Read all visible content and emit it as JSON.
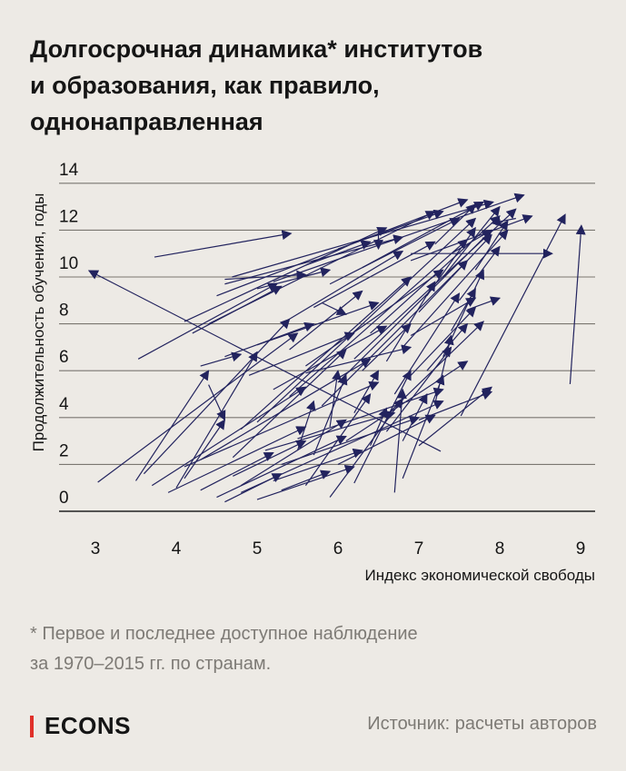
{
  "title_lines": [
    "Долгосрочная динамика* институтов",
    "и образования, как правило,",
    "однонаправленная"
  ],
  "footnote_lines": [
    "* Первое и последнее доступное наблюдение",
    "за 1970–2015 гг. по странам."
  ],
  "brand": "ECONS",
  "source": "Источник: расчеты авторов",
  "colors": {
    "arrow": "#22235e",
    "grid": "#7a7670",
    "background": "#edeae5",
    "brand_bar": "#e0312a"
  },
  "chart_data": {
    "type": "scatter",
    "subtype": "arrows (first to last observation)",
    "xlabel": "Индекс экономической свободы",
    "ylabel": "Продолжительность обучения, годы",
    "xlim": [
      2.6,
      9.2
    ],
    "ylim": [
      0,
      14
    ],
    "xticks": [
      "3",
      "4",
      "5",
      "6",
      "7",
      "8",
      "9"
    ],
    "yticks": [
      "0",
      "2",
      "4",
      "6",
      "8",
      "10",
      "12",
      "14"
    ],
    "grid": "horizontal",
    "arrows": [
      [
        3.73,
        10.85,
        5.42,
        11.86
      ],
      [
        7.27,
        2.56,
        2.92,
        10.27
      ],
      [
        8.87,
        5.43,
        9.01,
        12.2
      ],
      [
        3.03,
        1.24,
        5.5,
        7.6
      ],
      [
        3.53,
        6.5,
        5.25,
        9.73
      ],
      [
        4.69,
        10.0,
        7.92,
        13.2
      ],
      [
        7.52,
        4.07,
        8.81,
        12.67
      ],
      [
        6.9,
        11.0,
        8.65,
        11.0
      ],
      [
        6.9,
        7.5,
        7.7,
        9.1
      ],
      [
        3.5,
        1.3,
        4.4,
        6.0
      ],
      [
        4.3,
        6.2,
        4.8,
        6.7
      ],
      [
        4.0,
        1.0,
        5.0,
        6.8
      ],
      [
        4.2,
        7.6,
        5.3,
        9.6
      ],
      [
        4.5,
        9.2,
        7.6,
        13.3
      ],
      [
        4.4,
        8.0,
        7.2,
        12.8
      ],
      [
        4.1,
        8.1,
        6.6,
        12.1
      ],
      [
        5.2,
        9.8,
        8.3,
        13.5
      ],
      [
        4.6,
        9.7,
        6.8,
        11.7
      ],
      [
        3.9,
        0.8,
        5.6,
        3.6
      ],
      [
        4.3,
        0.9,
        5.2,
        2.5
      ],
      [
        4.5,
        0.6,
        6.1,
        3.2
      ],
      [
        5.0,
        0.5,
        6.2,
        1.9
      ],
      [
        4.8,
        0.8,
        7.3,
        4.7
      ],
      [
        4.1,
        1.9,
        6.5,
        5.5
      ],
      [
        5.3,
        0.9,
        5.9,
        1.7
      ],
      [
        4.6,
        0.4,
        5.3,
        1.6
      ],
      [
        4.1,
        1.4,
        4.6,
        3.9
      ],
      [
        4.7,
        1.5,
        5.6,
        3.0
      ],
      [
        3.6,
        1.6,
        5.4,
        8.2
      ],
      [
        4.7,
        2.3,
        6.1,
        6.9
      ],
      [
        5.6,
        1.1,
        6.4,
        5.0
      ],
      [
        5.9,
        0.6,
        6.8,
        4.8
      ],
      [
        6.2,
        1.2,
        6.9,
        6.0
      ],
      [
        5.1,
        2.6,
        6.7,
        4.2
      ],
      [
        5.5,
        3.1,
        7.3,
        5.2
      ],
      [
        5.3,
        2.0,
        7.0,
        4.0
      ],
      [
        6.0,
        2.0,
        7.2,
        4.1
      ],
      [
        6.8,
        1.4,
        7.3,
        5.8
      ],
      [
        6.1,
        3.0,
        7.6,
        6.4
      ],
      [
        7.0,
        3.9,
        7.9,
        5.1
      ],
      [
        6.6,
        4.1,
        7.8,
        8.1
      ],
      [
        7.2,
        4.6,
        7.4,
        7.5
      ],
      [
        6.7,
        5.0,
        7.5,
        9.3
      ],
      [
        7.4,
        7.7,
        7.7,
        9.5
      ],
      [
        5.8,
        4.5,
        7.6,
        10.7
      ],
      [
        6.0,
        5.5,
        7.9,
        12.0
      ],
      [
        5.4,
        4.9,
        7.6,
        11.6
      ],
      [
        5.0,
        3.8,
        7.7,
        12.5
      ],
      [
        4.8,
        3.5,
        6.9,
        10.0
      ],
      [
        5.6,
        6.2,
        7.3,
        10.3
      ],
      [
        6.2,
        6.5,
        8.2,
        12.9
      ],
      [
        6.4,
        7.6,
        8.0,
        12.6
      ],
      [
        6.8,
        7.0,
        8.1,
        12.0
      ],
      [
        7.0,
        8.5,
        7.9,
        11.8
      ],
      [
        7.1,
        9.2,
        7.7,
        12.1
      ],
      [
        7.3,
        10.0,
        8.0,
        13.0
      ],
      [
        6.9,
        10.7,
        8.4,
        12.6
      ],
      [
        6.3,
        10.4,
        7.8,
        13.2
      ],
      [
        5.9,
        9.7,
        7.5,
        12.5
      ],
      [
        5.7,
        8.7,
        7.2,
        11.5
      ],
      [
        5.3,
        8.0,
        6.8,
        11.1
      ],
      [
        5.0,
        7.1,
        6.5,
        8.9
      ],
      [
        4.6,
        6.6,
        5.7,
        8.0
      ],
      [
        4.9,
        5.8,
        6.2,
        7.6
      ],
      [
        5.2,
        5.2,
        6.6,
        7.9
      ],
      [
        5.6,
        5.9,
        6.9,
        7.0
      ],
      [
        6.3,
        6.0,
        6.9,
        8.0
      ],
      [
        6.2,
        4.2,
        6.5,
        6.0
      ],
      [
        5.9,
        3.6,
        6.0,
        6.0
      ],
      [
        5.5,
        2.6,
        5.7,
        4.7
      ],
      [
        5.7,
        2.4,
        6.1,
        5.8
      ],
      [
        6.4,
        2.8,
        6.6,
        4.4
      ],
      [
        6.8,
        3.0,
        7.1,
        5.0
      ],
      [
        7.0,
        2.8,
        7.9,
        5.3
      ],
      [
        6.6,
        3.4,
        7.4,
        7.0
      ],
      [
        6.9,
        5.8,
        7.7,
        8.7
      ],
      [
        7.3,
        6.6,
        7.8,
        10.3
      ],
      [
        7.5,
        9.0,
        8.0,
        11.3
      ],
      [
        7.7,
        10.3,
        8.1,
        12.4
      ],
      [
        7.4,
        11.0,
        7.9,
        12.0
      ],
      [
        7.2,
        11.4,
        7.7,
        13.1
      ],
      [
        6.0,
        11.2,
        7.3,
        12.8
      ],
      [
        5.6,
        10.5,
        6.4,
        11.5
      ],
      [
        5.0,
        9.5,
        5.9,
        10.3
      ],
      [
        4.4,
        5.4,
        4.6,
        3.9
      ],
      [
        6.5,
        12.0,
        6.5,
        11.2
      ],
      [
        8.2,
        12.5,
        7.9,
        12.3
      ],
      [
        5.8,
        8.9,
        6.1,
        8.4
      ],
      [
        3.7,
        1.1,
        5.6,
        5.3
      ],
      [
        4.3,
        2.2,
        6.4,
        6.5
      ],
      [
        4.8,
        1.1,
        6.1,
        3.9
      ],
      [
        5.2,
        1.3,
        6.3,
        2.6
      ],
      [
        6.7,
        0.8,
        6.8,
        5.2
      ],
      [
        7.6,
        8.6,
        8.0,
        9.1
      ],
      [
        4.6,
        9.9,
        5.6,
        10.1
      ],
      [
        5.4,
        6.9,
        6.3,
        9.4
      ],
      [
        6.6,
        6.4,
        7.2,
        9.8
      ],
      [
        7.1,
        6.0,
        7.6,
        8.0
      ]
    ]
  }
}
